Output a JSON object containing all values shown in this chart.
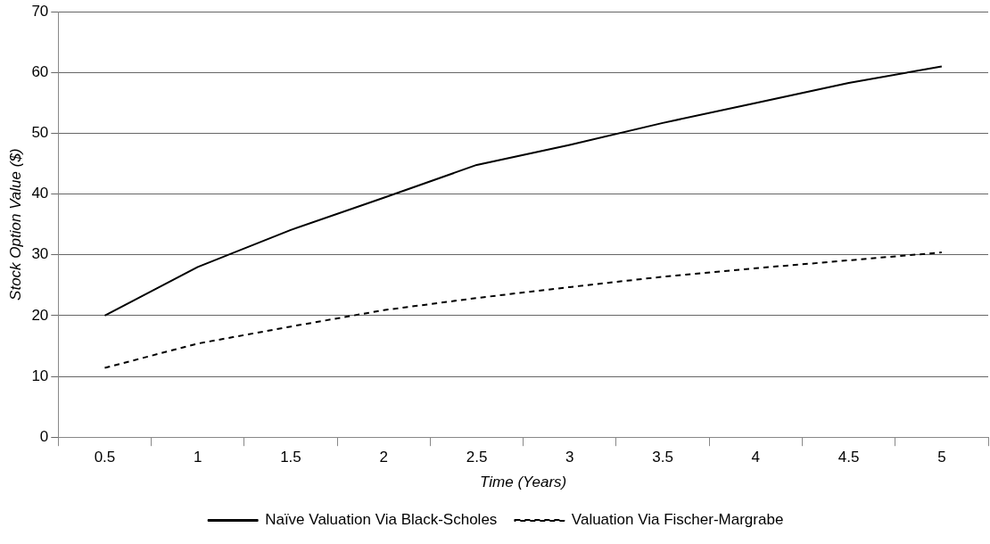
{
  "chart_data": {
    "type": "line",
    "xlabel": "Time (Years)",
    "ylabel": "Stock Option Value ($)",
    "categories": [
      "0.5",
      "1",
      "1.5",
      "2",
      "2.5",
      "3",
      "3.5",
      "4",
      "4.5",
      "5"
    ],
    "series": [
      {
        "name": "Naïve Valuation Via Black-Scholes",
        "color": "#000000",
        "line_style": "solid",
        "values": [
          20,
          28,
          34.1,
          39.4,
          44.8,
          48.1,
          51.7,
          55,
          58.3,
          61
        ]
      },
      {
        "name": "Valuation Via Fischer-Margrabe",
        "color": "#000000",
        "line_style": "dashed",
        "values": [
          11.4,
          15.4,
          18.2,
          20.9,
          22.9,
          24.7,
          26.4,
          27.8,
          29.1,
          30.4
        ]
      }
    ],
    "ylim": [
      0,
      70
    ],
    "yticks": [
      0,
      10,
      20,
      30,
      40,
      50,
      60,
      70
    ],
    "grid": "y",
    "legend": "bottom",
    "marker": "none"
  }
}
